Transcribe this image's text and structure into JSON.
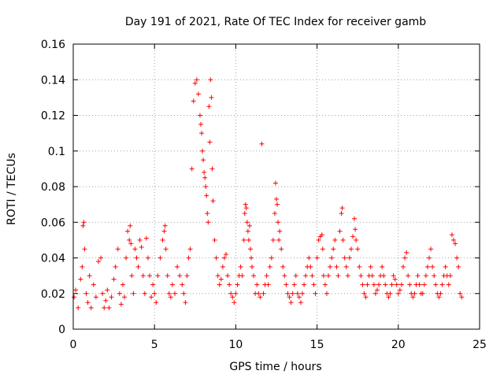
{
  "chart_data": {
    "type": "scatter",
    "title": "Day 191 of 2021, Rate Of TEC Index for receiver gamb",
    "xlabel": "GPS time / hours",
    "ylabel": "ROTI / TECUs",
    "xlim": [
      0,
      25
    ],
    "ylim": [
      0,
      0.16
    ],
    "x_ticks": [
      0,
      5,
      10,
      15,
      20,
      25
    ],
    "x_tick_labels": [
      "0",
      "5",
      "10",
      "15",
      "20",
      "25"
    ],
    "y_ticks": [
      0,
      0.02,
      0.04,
      0.06,
      0.08,
      0.1,
      0.12,
      0.14,
      0.16
    ],
    "y_tick_labels": [
      "0",
      "0.02",
      "0.04",
      "0.06",
      "0.08",
      "0.1",
      "0.12",
      "0.14",
      "0.16"
    ],
    "grid": true,
    "marker": "+",
    "series": [
      {
        "name": "ROTI",
        "color": "#ff0000",
        "x": [
          0.05,
          0.15,
          0.3,
          0.45,
          0.55,
          0.6,
          0.65,
          0.7,
          0.8,
          0.9,
          1.0,
          1.1,
          1.25,
          1.4,
          1.55,
          1.7,
          1.8,
          1.9,
          2.0,
          2.1,
          2.2,
          2.35,
          2.5,
          2.6,
          2.75,
          2.85,
          2.95,
          3.05,
          3.15,
          3.25,
          3.35,
          3.45,
          3.5,
          3.55,
          3.6,
          3.7,
          3.8,
          3.9,
          4.0,
          4.1,
          4.2,
          4.3,
          4.4,
          4.5,
          4.6,
          4.7,
          4.8,
          4.9,
          5.0,
          5.1,
          5.2,
          5.35,
          5.5,
          5.6,
          5.65,
          5.7,
          5.8,
          5.9,
          6.0,
          6.1,
          6.25,
          6.4,
          6.55,
          6.7,
          6.8,
          6.9,
          7.0,
          7.1,
          7.2,
          7.3,
          7.4,
          7.5,
          7.6,
          7.7,
          7.8,
          7.85,
          7.9,
          7.95,
          8.0,
          8.05,
          8.1,
          8.15,
          8.2,
          8.25,
          8.3,
          8.35,
          8.4,
          8.45,
          8.5,
          8.55,
          8.6,
          8.7,
          8.8,
          8.9,
          9.0,
          9.1,
          9.2,
          9.3,
          9.4,
          9.5,
          9.6,
          9.7,
          9.8,
          9.9,
          10.0,
          10.1,
          10.2,
          10.3,
          10.4,
          10.5,
          10.55,
          10.6,
          10.65,
          10.7,
          10.75,
          10.8,
          10.85,
          10.9,
          10.95,
          11.0,
          11.1,
          11.2,
          11.3,
          11.4,
          11.5,
          11.6,
          11.7,
          11.8,
          11.9,
          12.0,
          12.1,
          12.2,
          12.3,
          12.4,
          12.45,
          12.5,
          12.55,
          12.6,
          12.65,
          12.7,
          12.8,
          12.9,
          13.0,
          13.1,
          13.2,
          13.3,
          13.4,
          13.5,
          13.6,
          13.7,
          13.8,
          13.9,
          14.0,
          14.1,
          14.2,
          14.3,
          14.4,
          14.5,
          14.6,
          14.7,
          14.8,
          14.9,
          15.0,
          15.1,
          15.2,
          15.3,
          15.35,
          15.4,
          15.5,
          15.6,
          15.7,
          15.8,
          15.9,
          16.0,
          16.1,
          16.2,
          16.3,
          16.4,
          16.5,
          16.55,
          16.6,
          16.7,
          16.8,
          16.9,
          17.0,
          17.1,
          17.2,
          17.3,
          17.35,
          17.4,
          17.5,
          17.6,
          17.7,
          17.8,
          17.9,
          18.0,
          18.1,
          18.2,
          18.3,
          18.4,
          18.5,
          18.6,
          18.7,
          18.8,
          18.9,
          19.0,
          19.1,
          19.2,
          19.3,
          19.4,
          19.5,
          19.6,
          19.7,
          19.8,
          19.9,
          20.0,
          20.1,
          20.2,
          20.3,
          20.4,
          20.5,
          20.6,
          20.7,
          20.8,
          20.9,
          21.0,
          21.1,
          21.2,
          21.3,
          21.4,
          21.5,
          21.6,
          21.7,
          21.8,
          21.9,
          22.0,
          22.1,
          22.2,
          22.3,
          22.4,
          22.5,
          22.6,
          22.7,
          22.8,
          22.9,
          23.0,
          23.1,
          23.2,
          23.3,
          23.4,
          23.5,
          23.6,
          23.7,
          23.8,
          23.9
        ],
        "y": [
          0.018,
          0.022,
          0.012,
          0.028,
          0.035,
          0.058,
          0.06,
          0.045,
          0.02,
          0.015,
          0.03,
          0.012,
          0.025,
          0.018,
          0.038,
          0.04,
          0.02,
          0.012,
          0.016,
          0.022,
          0.012,
          0.018,
          0.028,
          0.035,
          0.045,
          0.02,
          0.014,
          0.025,
          0.018,
          0.04,
          0.055,
          0.05,
          0.058,
          0.048,
          0.03,
          0.02,
          0.045,
          0.04,
          0.035,
          0.05,
          0.046,
          0.03,
          0.02,
          0.051,
          0.04,
          0.03,
          0.018,
          0.025,
          0.02,
          0.015,
          0.03,
          0.04,
          0.05,
          0.055,
          0.058,
          0.045,
          0.03,
          0.02,
          0.018,
          0.025,
          0.02,
          0.035,
          0.03,
          0.025,
          0.02,
          0.015,
          0.03,
          0.04,
          0.045,
          0.09,
          0.128,
          0.138,
          0.14,
          0.132,
          0.12,
          0.115,
          0.11,
          0.1,
          0.095,
          0.088,
          0.085,
          0.08,
          0.075,
          0.065,
          0.06,
          0.125,
          0.105,
          0.14,
          0.13,
          0.09,
          0.072,
          0.05,
          0.04,
          0.03,
          0.025,
          0.028,
          0.035,
          0.04,
          0.042,
          0.03,
          0.025,
          0.02,
          0.018,
          0.015,
          0.02,
          0.025,
          0.03,
          0.035,
          0.03,
          0.05,
          0.065,
          0.07,
          0.068,
          0.06,
          0.055,
          0.05,
          0.058,
          0.045,
          0.04,
          0.035,
          0.03,
          0.02,
          0.025,
          0.02,
          0.018,
          0.104,
          0.02,
          0.025,
          0.03,
          0.025,
          0.035,
          0.04,
          0.05,
          0.065,
          0.082,
          0.073,
          0.07,
          0.06,
          0.05,
          0.055,
          0.045,
          0.035,
          0.03,
          0.025,
          0.02,
          0.018,
          0.015,
          0.02,
          0.025,
          0.03,
          0.02,
          0.018,
          0.015,
          0.02,
          0.025,
          0.03,
          0.035,
          0.04,
          0.035,
          0.03,
          0.025,
          0.02,
          0.04,
          0.05,
          0.052,
          0.053,
          0.045,
          0.03,
          0.025,
          0.02,
          0.03,
          0.035,
          0.04,
          0.045,
          0.05,
          0.035,
          0.03,
          0.055,
          0.065,
          0.068,
          0.05,
          0.04,
          0.035,
          0.03,
          0.04,
          0.045,
          0.052,
          0.062,
          0.056,
          0.05,
          0.045,
          0.035,
          0.03,
          0.025,
          0.02,
          0.018,
          0.025,
          0.03,
          0.035,
          0.03,
          0.025,
          0.02,
          0.022,
          0.025,
          0.03,
          0.035,
          0.03,
          0.025,
          0.02,
          0.018,
          0.02,
          0.025,
          0.03,
          0.028,
          0.025,
          0.02,
          0.022,
          0.025,
          0.035,
          0.04,
          0.043,
          0.03,
          0.025,
          0.02,
          0.018,
          0.02,
          0.025,
          0.03,
          0.025,
          0.02,
          0.02,
          0.025,
          0.03,
          0.035,
          0.04,
          0.045,
          0.035,
          0.03,
          0.025,
          0.02,
          0.018,
          0.02,
          0.025,
          0.03,
          0.035,
          0.03,
          0.025,
          0.03,
          0.053,
          0.05,
          0.048,
          0.04,
          0.035,
          0.02,
          0.018
        ]
      }
    ]
  }
}
